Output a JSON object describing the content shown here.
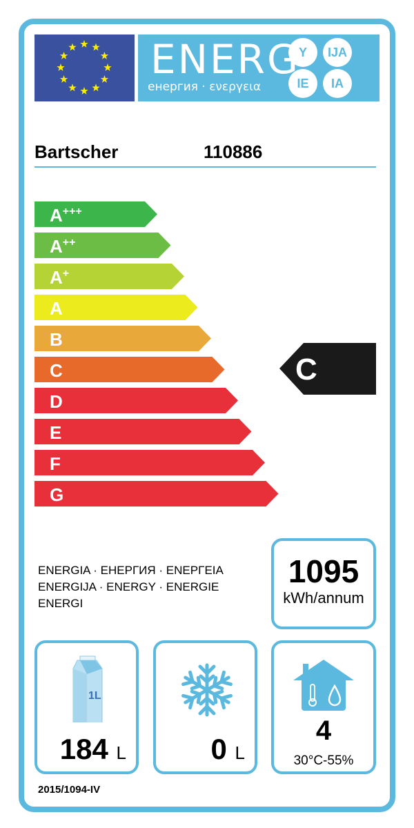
{
  "header": {
    "energy": "ENERG",
    "suffixes": [
      "Y",
      "IJA",
      "IE",
      "IA"
    ],
    "subtitle": "енергия · ενεργεια"
  },
  "supplier": "Bartscher",
  "model": "110886",
  "classes": [
    {
      "label": "A",
      "sup": "+++",
      "color": "#3cb54a"
    },
    {
      "label": "A",
      "sup": "++",
      "color": "#6cbd45"
    },
    {
      "label": "A",
      "sup": "+",
      "color": "#b5d334"
    },
    {
      "label": "A",
      "sup": "",
      "color": "#ebeb1e"
    },
    {
      "label": "B",
      "sup": "",
      "color": "#e8a93a"
    },
    {
      "label": "C",
      "sup": "",
      "color": "#e86a2a"
    },
    {
      "label": "D",
      "sup": "",
      "color": "#e8303a"
    },
    {
      "label": "E",
      "sup": "",
      "color": "#e8303a"
    },
    {
      "label": "F",
      "sup": "",
      "color": "#e8303a"
    },
    {
      "label": "G",
      "sup": "",
      "color": "#e8303a"
    }
  ],
  "rating": "C",
  "energy_words": [
    "ENERGIA · ЕНЕРГИЯ · ΕΝΕΡΓΕΙΑ",
    "ENERGIJA · ENERGY · ENERGIE",
    "ENERGI"
  ],
  "consumption": {
    "value": "1095",
    "unit": "kWh/annum"
  },
  "fresh_volume": {
    "value": "184",
    "unit": "L",
    "icon_text": "1L"
  },
  "frozen_volume": {
    "value": "0",
    "unit": "L"
  },
  "climate": {
    "value": "4",
    "range": "30°C-55%"
  },
  "regulation": "2015/1094-IV",
  "colors": {
    "frame": "#5bb8de",
    "flag": "#3a519f",
    "star": "#ffed00"
  }
}
